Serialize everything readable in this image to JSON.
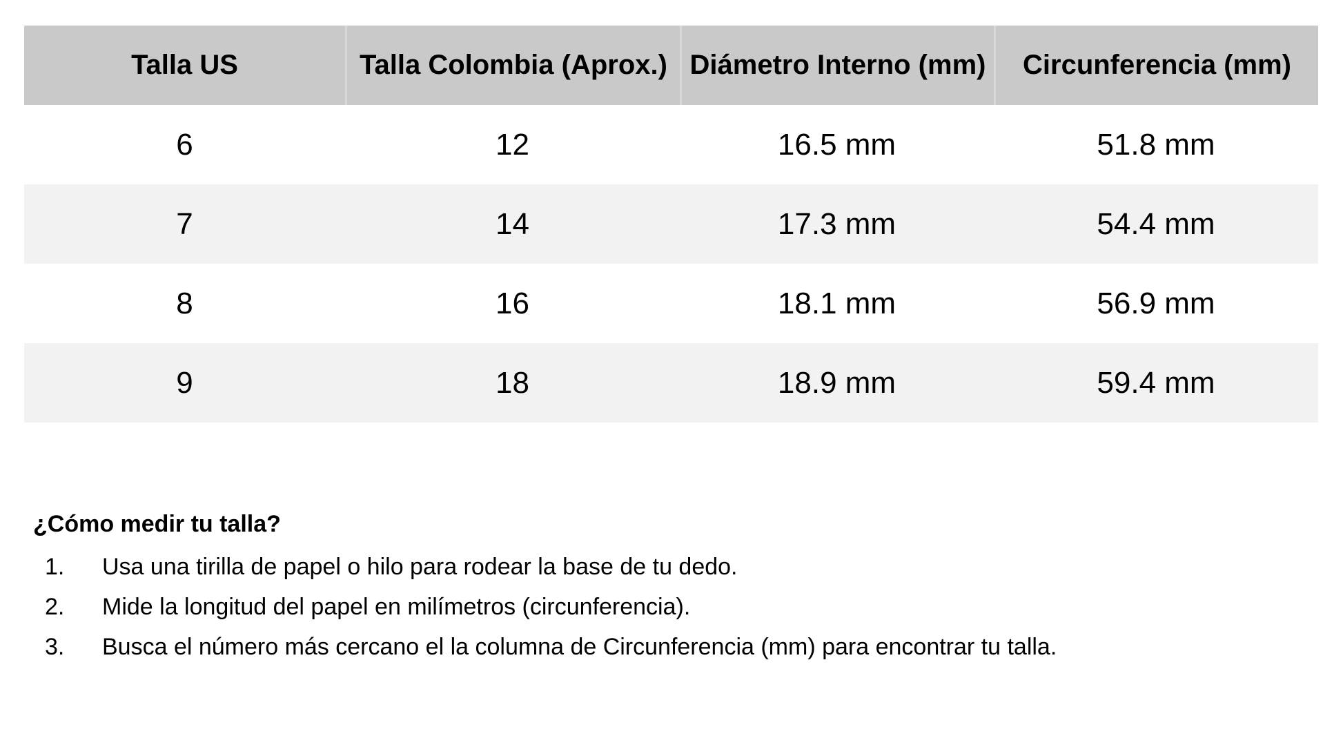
{
  "table": {
    "headers": [
      "Talla US",
      "Talla Colombia (Aprox.)",
      "Diámetro Interno (mm)",
      "Circunferencia (mm)"
    ],
    "rows": [
      [
        "6",
        "12",
        "16.5 mm",
        "51.8 mm"
      ],
      [
        "7",
        "14",
        "17.3 mm",
        "54.4 mm"
      ],
      [
        "8",
        "16",
        "18.1 mm",
        "56.9 mm"
      ],
      [
        "9",
        "18",
        "18.9 mm",
        "59.4 mm"
      ]
    ]
  },
  "instructions": {
    "heading": "¿Cómo medir tu talla?",
    "steps": [
      {
        "num": "1.",
        "text": "Usa una tirilla de papel o hilo para rodear la base de tu dedo."
      },
      {
        "num": "2.",
        "text": "Mide la longitud del papel en milímetros (circunferencia)."
      },
      {
        "num": "3.",
        "text": "Busca el número más cercano el la columna de Circunferencia (mm) para encontrar tu talla."
      }
    ]
  },
  "colors": {
    "header_bg": "#c9c9c9",
    "row_alt_bg": "#f2f2f2",
    "header_divider": "#d9d9d9",
    "text": "#000000"
  }
}
